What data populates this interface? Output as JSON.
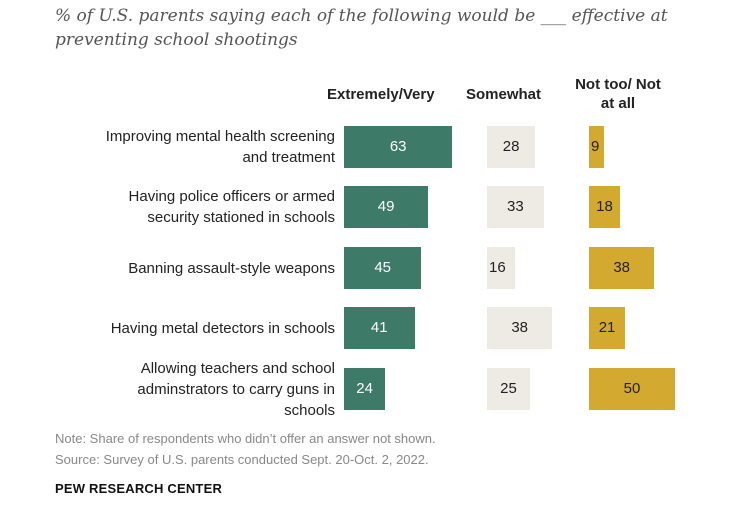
{
  "chart_data": {
    "type": "bar",
    "subtitle": "% of U.S. parents saying each of the following would be ___ effective at preventing school shootings",
    "column_headers": [
      "Extremely/Very",
      "Somewhat",
      "Not too/ Not at all"
    ],
    "categories": [
      "Improving mental health screening and treatment",
      "Having police officers or armed security stationed in schools",
      "Banning assault-style weapons",
      "Having metal detectors in schools",
      "Allowing teachers and school adminstrators to carry guns in schools"
    ],
    "series": [
      {
        "name": "Extremely/Very",
        "color": "#3d7a67",
        "text_color": "#ffffff",
        "values": [
          63,
          49,
          45,
          41,
          24
        ]
      },
      {
        "name": "Somewhat",
        "color": "#eeebe4",
        "text_color": "#222222",
        "values": [
          28,
          33,
          16,
          38,
          25
        ]
      },
      {
        "name": "Not too/ Not at all",
        "color": "#d3a92f",
        "text_color": "#222222",
        "values": [
          9,
          18,
          38,
          21,
          50
        ]
      }
    ],
    "note": "Note: Share of respondents who didn’t offer an answer not shown.",
    "source": "Source: Survey of U.S. parents conducted Sept. 20-Oct. 2, 2022.",
    "brand": "PEW RESEARCH CENTER"
  }
}
